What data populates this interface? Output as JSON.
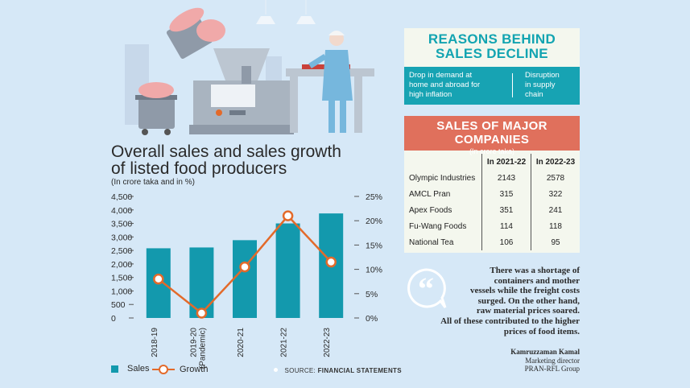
{
  "chart_data": {
    "type": "bar",
    "title": "Overall sales and sales growth of listed food producers",
    "subtitle": "(In crore taka and in %)",
    "categories": [
      "2018-19",
      "2019-20 (Pandemic)",
      "2020-21",
      "2021-22",
      "2022-23"
    ],
    "category_lines": [
      [
        "2018-19"
      ],
      [
        "2019-20",
        "(Pandemic)"
      ],
      [
        "2020-21"
      ],
      [
        "2021-22"
      ],
      [
        "2022-23"
      ]
    ],
    "series": [
      {
        "name": "Sales",
        "type": "bar",
        "axis": "left",
        "color": "#1399ad",
        "values": [
          2580,
          2610,
          2880,
          3500,
          3870
        ]
      },
      {
        "name": "Growth",
        "type": "line",
        "axis": "right",
        "color": "#e36a2a",
        "values": [
          8,
          1,
          10.5,
          21,
          11.5
        ]
      }
    ],
    "y_left": {
      "ylim": [
        0,
        4500
      ],
      "ticks": [
        "4,500",
        "4,000",
        "3,500",
        "3,000",
        "2,500",
        "2,000",
        "1,500",
        "1,000",
        "500",
        "0"
      ]
    },
    "y_right": {
      "ylim": [
        0,
        25
      ],
      "ticks": [
        "25%",
        "20%",
        "15%",
        "10%",
        "5%",
        "0%"
      ]
    },
    "grid": false,
    "legend": "bottom-left"
  },
  "legend": {
    "sales": "Sales",
    "growth": "Growth"
  },
  "source": {
    "label": "SOURCE:",
    "value": "FINANCIAL STATEMENTS"
  },
  "reasons": {
    "title_1": "REASONS BEHIND",
    "title_2": "SALES DECLINE",
    "item_1": [
      "Drop in demand at",
      "home and abroad for",
      "high inflation"
    ],
    "item_2": [
      "Disruption",
      "in supply",
      "chain"
    ]
  },
  "companies": {
    "title": "SALES OF MAJOR COMPANIES",
    "subtitle": "(In crore taka)",
    "headers": [
      "In 2021-22",
      "In 2022-23"
    ],
    "rows": [
      {
        "name": "Olympic Industries",
        "v1": "2143",
        "v2": "2578"
      },
      {
        "name": "AMCL Pran",
        "v1": "315",
        "v2": "322"
      },
      {
        "name": "Apex Foods",
        "v1": "351",
        "v2": "241"
      },
      {
        "name": "Fu-Wang Foods",
        "v1": "114",
        "v2": "118"
      },
      {
        "name": "National Tea",
        "v1": "106",
        "v2": "95"
      }
    ]
  },
  "quote": {
    "lines": [
      "There was a shortage of",
      "containers and mother",
      "vessels while the freight costs",
      "surged. On the other hand,",
      "raw material prices soared.",
      "All of these contributed to the higher",
      "prices of food items."
    ],
    "name": "Kamruzzaman Kamal",
    "role": "Marketing director",
    "org": "PRAN-RFL Group"
  },
  "colors": {
    "background": "#d6e8f7",
    "teal": "#1399ad",
    "orange": "#e36a2a",
    "coral": "#e0705c"
  }
}
